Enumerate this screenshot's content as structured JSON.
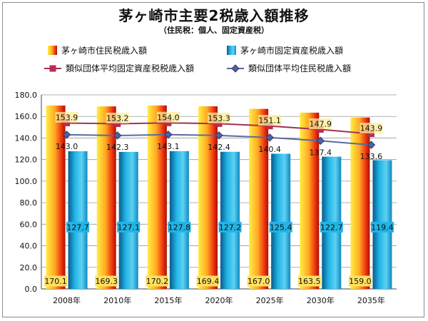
{
  "title": "茅ヶ崎市主要2税歳入額推移",
  "subtitle": "（住民税：個人、固定資産税）",
  "chart_data": {
    "type": "bar",
    "categories": [
      "2008年",
      "2010年",
      "2015年",
      "2020年",
      "2025年",
      "2030年",
      "2035年"
    ],
    "ylim": [
      0,
      180
    ],
    "yticks": [
      "0.0",
      "20.0",
      "40.0",
      "60.0",
      "80.0",
      "100.0",
      "120.0",
      "140.0",
      "160.0",
      "180.0"
    ],
    "grid": true,
    "series": [
      {
        "name": "茅ヶ崎市住民税歳入額",
        "kind": "bar",
        "color": "#e03010",
        "values": [
          170.1,
          169.3,
          170.2,
          169.4,
          167.0,
          163.5,
          159.0
        ],
        "labels": [
          "170.1",
          "169.3",
          "170.2",
          "169.4",
          "167.0",
          "163.5",
          "159.0"
        ]
      },
      {
        "name": "茅ヶ崎市固定資産税歳入額",
        "kind": "bar",
        "color": "#1aa0d8",
        "values": [
          127.7,
          127.1,
          127.8,
          127.2,
          125.4,
          122.7,
          119.4
        ],
        "labels": [
          "127.7",
          "127.1",
          "127.8",
          "127.2",
          "125.4",
          "122.7",
          "119.4"
        ]
      },
      {
        "name": "類似団体平均固定資産税税歳入額",
        "kind": "line",
        "color": "#a0305a",
        "values": [
          153.9,
          153.2,
          154.0,
          153.3,
          151.1,
          147.9,
          143.9
        ],
        "labels": [
          "153.9",
          "153.2",
          "154.0",
          "153.3",
          "151.1",
          "147.9",
          "143.9"
        ]
      },
      {
        "name": "類似団体平均住民税歳入額",
        "kind": "line",
        "color": "#5a6aa0",
        "values": [
          143.0,
          142.3,
          143.1,
          142.4,
          140.4,
          137.4,
          133.6
        ],
        "labels": [
          "143.0",
          "142.3",
          "143.1",
          "142.4",
          "140.4",
          "137.4",
          "133.6"
        ]
      }
    ]
  }
}
